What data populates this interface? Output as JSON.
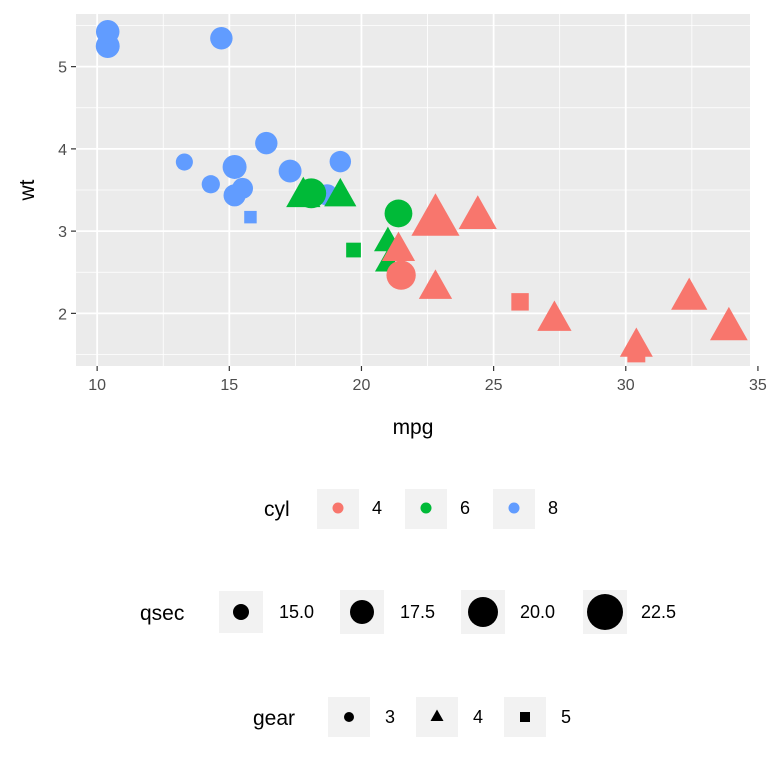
{
  "chart_data": {
    "type": "scatter",
    "title": "",
    "xlabel": "mpg",
    "ylabel": "wt",
    "xlim": [
      9.2,
      34.7
    ],
    "ylim": [
      1.36,
      5.64
    ],
    "x_ticks": [
      10,
      15,
      20,
      25,
      30,
      35
    ],
    "y_ticks": [
      2,
      3,
      4,
      5
    ],
    "grid": true,
    "legend_placement": "bottom",
    "colors": {
      "4": "#F8766D",
      "6": "#00BA38",
      "8": "#619CFF"
    },
    "legends": {
      "cyl": {
        "title": "cyl",
        "labels": [
          "4",
          "6",
          "8"
        ]
      },
      "qsec": {
        "title": "qsec",
        "labels": [
          "15.0",
          "17.5",
          "20.0",
          "22.5"
        ]
      },
      "gear": {
        "title": "gear",
        "labels": [
          "3",
          "4",
          "5"
        ],
        "shapes": [
          "circle",
          "triangle",
          "square"
        ]
      }
    },
    "points": [
      {
        "mpg": 21.0,
        "wt": 2.62,
        "cyl": 6,
        "qsec": 16.46,
        "gear": 4
      },
      {
        "mpg": 21.0,
        "wt": 2.875,
        "cyl": 6,
        "qsec": 17.02,
        "gear": 4
      },
      {
        "mpg": 22.8,
        "wt": 2.32,
        "cyl": 4,
        "qsec": 18.61,
        "gear": 4
      },
      {
        "mpg": 21.4,
        "wt": 3.215,
        "cyl": 6,
        "qsec": 19.44,
        "gear": 3
      },
      {
        "mpg": 18.7,
        "wt": 3.44,
        "cyl": 8,
        "qsec": 17.02,
        "gear": 3
      },
      {
        "mpg": 18.1,
        "wt": 3.46,
        "cyl": 6,
        "qsec": 20.22,
        "gear": 3
      },
      {
        "mpg": 14.3,
        "wt": 3.57,
        "cyl": 8,
        "qsec": 15.84,
        "gear": 3
      },
      {
        "mpg": 24.4,
        "wt": 3.19,
        "cyl": 4,
        "qsec": 20.0,
        "gear": 4
      },
      {
        "mpg": 22.8,
        "wt": 3.15,
        "cyl": 4,
        "qsec": 22.9,
        "gear": 4
      },
      {
        "mpg": 19.2,
        "wt": 3.44,
        "cyl": 6,
        "qsec": 18.3,
        "gear": 4
      },
      {
        "mpg": 17.8,
        "wt": 3.44,
        "cyl": 6,
        "qsec": 18.9,
        "gear": 4
      },
      {
        "mpg": 16.4,
        "wt": 4.07,
        "cyl": 8,
        "qsec": 17.4,
        "gear": 3
      },
      {
        "mpg": 17.3,
        "wt": 3.73,
        "cyl": 8,
        "qsec": 17.6,
        "gear": 3
      },
      {
        "mpg": 15.2,
        "wt": 3.78,
        "cyl": 8,
        "qsec": 18.0,
        "gear": 3
      },
      {
        "mpg": 10.4,
        "wt": 5.25,
        "cyl": 8,
        "qsec": 17.98,
        "gear": 3
      },
      {
        "mpg": 10.4,
        "wt": 5.424,
        "cyl": 8,
        "qsec": 17.82,
        "gear": 3
      },
      {
        "mpg": 14.7,
        "wt": 5.345,
        "cyl": 8,
        "qsec": 17.42,
        "gear": 3
      },
      {
        "mpg": 32.4,
        "wt": 2.2,
        "cyl": 4,
        "qsec": 19.47,
        "gear": 4
      },
      {
        "mpg": 30.4,
        "wt": 1.615,
        "cyl": 4,
        "qsec": 18.52,
        "gear": 4
      },
      {
        "mpg": 33.9,
        "wt": 1.835,
        "cyl": 4,
        "qsec": 19.9,
        "gear": 4
      },
      {
        "mpg": 21.5,
        "wt": 2.465,
        "cyl": 4,
        "qsec": 20.01,
        "gear": 3
      },
      {
        "mpg": 15.5,
        "wt": 3.52,
        "cyl": 8,
        "qsec": 16.87,
        "gear": 3
      },
      {
        "mpg": 15.2,
        "wt": 3.435,
        "cyl": 8,
        "qsec": 17.3,
        "gear": 3
      },
      {
        "mpg": 13.3,
        "wt": 3.84,
        "cyl": 8,
        "qsec": 15.41,
        "gear": 3
      },
      {
        "mpg": 19.2,
        "wt": 3.845,
        "cyl": 8,
        "qsec": 17.05,
        "gear": 3
      },
      {
        "mpg": 27.3,
        "wt": 1.935,
        "cyl": 4,
        "qsec": 18.9,
        "gear": 4
      },
      {
        "mpg": 26.0,
        "wt": 2.14,
        "cyl": 4,
        "qsec": 16.7,
        "gear": 5
      },
      {
        "mpg": 30.4,
        "wt": 1.513,
        "cyl": 4,
        "qsec": 16.9,
        "gear": 5
      },
      {
        "mpg": 15.8,
        "wt": 3.17,
        "cyl": 8,
        "qsec": 14.5,
        "gear": 5
      },
      {
        "mpg": 19.7,
        "wt": 2.77,
        "cyl": 6,
        "qsec": 15.5,
        "gear": 5
      },
      {
        "mpg": 21.4,
        "wt": 2.78,
        "cyl": 4,
        "qsec": 18.6,
        "gear": 4
      }
    ]
  }
}
